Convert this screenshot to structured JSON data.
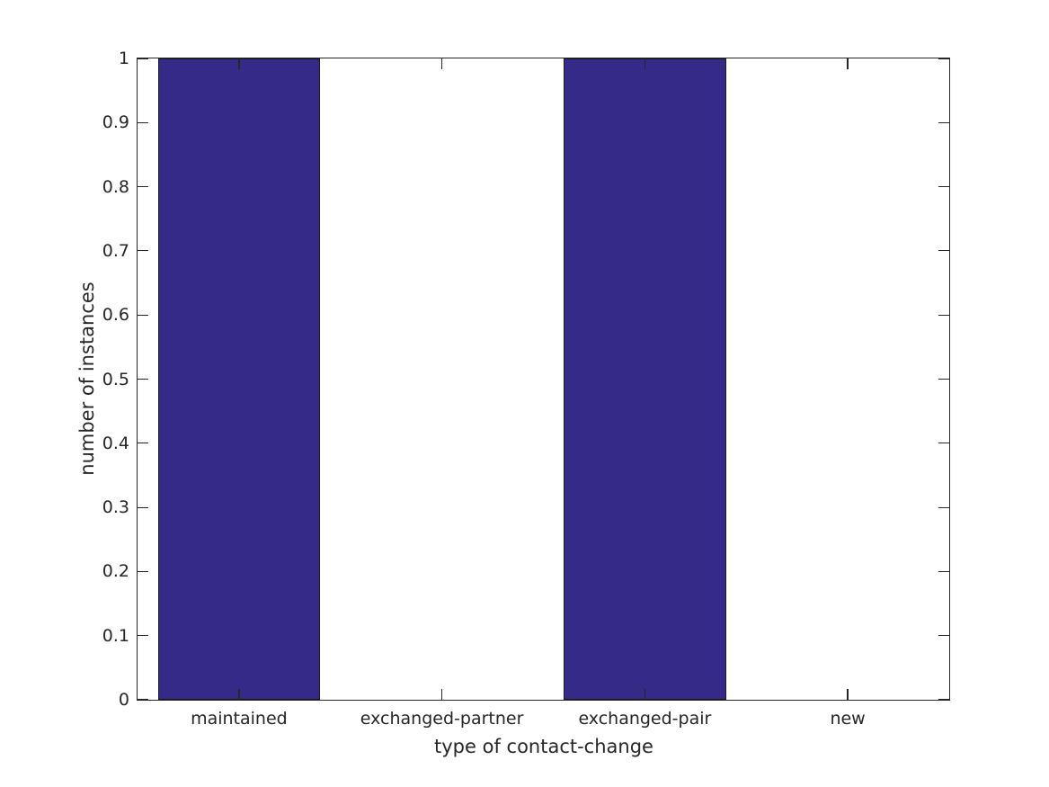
{
  "figure": {
    "background_color": "#ffffff",
    "axis_color": "#262626",
    "text_color": "#262626"
  },
  "chart_data": {
    "type": "bar",
    "title": "",
    "xlabel": "type of contact-change",
    "ylabel": "number of instances",
    "categories": [
      "maintained",
      "exchanged-partner",
      "exchanged-pair",
      "new"
    ],
    "values": [
      1,
      0,
      1,
      0
    ],
    "ylim": [
      0,
      1
    ],
    "yticks": [
      0,
      0.1,
      0.2,
      0.3,
      0.4,
      0.5,
      0.6,
      0.7,
      0.8,
      0.9,
      1
    ],
    "ytick_labels": [
      "0",
      "0.1",
      "0.2",
      "0.3",
      "0.4",
      "0.5",
      "0.6",
      "0.7",
      "0.8",
      "0.9",
      "1"
    ],
    "bar_color": "#352A87",
    "bar_edge_color": "#1a1a1a",
    "bar_rel_width": 0.8,
    "tick_direction": "in",
    "box": true,
    "grid": false,
    "legend": null
  }
}
